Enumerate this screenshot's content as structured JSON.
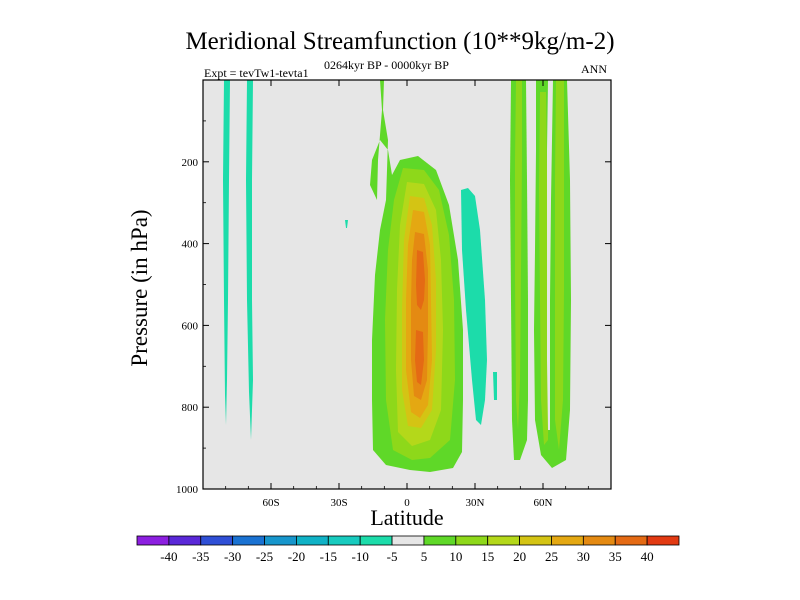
{
  "chart_data": {
    "type": "contour",
    "title": "Meridional Streamfunction (10**9kg/m-2)",
    "experiment_label": "Expt = tevTw1-tevta1",
    "period_label": "0264kyr BP - 0000kyr BP",
    "season_label": "ANN",
    "xlabel": "Latitude",
    "ylabel": "Pressure (in hPa)",
    "xlim": [
      -90,
      90
    ],
    "ylim": [
      1000,
      0
    ],
    "x_ticks": [
      {
        "value": -60,
        "label": "60S"
      },
      {
        "value": -30,
        "label": "30S"
      },
      {
        "value": 0,
        "label": "0"
      },
      {
        "value": 30,
        "label": "30N"
      },
      {
        "value": 60,
        "label": "60N"
      }
    ],
    "y_ticks": [
      {
        "value": 200,
        "label": "200"
      },
      {
        "value": 400,
        "label": "400"
      },
      {
        "value": 600,
        "label": "600"
      },
      {
        "value": 800,
        "label": "800"
      },
      {
        "value": 1000,
        "label": "1000"
      }
    ],
    "levels": [
      -40,
      -35,
      -30,
      -25,
      -20,
      -15,
      -10,
      -5,
      5,
      10,
      15,
      20,
      25,
      30,
      35,
      40
    ],
    "level_labels": [
      "-40",
      "-35",
      "-30",
      "-25",
      "-20",
      "-15",
      "-10",
      "-5",
      "5",
      "10",
      "15",
      "20",
      "25",
      "30",
      "35",
      "40"
    ],
    "colors": [
      "#8c1fe0",
      "#5a28d8",
      "#2f4fd6",
      "#1a72d2",
      "#1796cc",
      "#10b2c6",
      "#18cbbf",
      "#1cdcaa",
      "#e6e6e6",
      "#5fd828",
      "#8ed81a",
      "#b4d81a",
      "#d4c414",
      "#e4a812",
      "#e48a12",
      "#e46a14",
      "#e23a12"
    ],
    "features": [
      {
        "name": "sh-polar-cell-1",
        "sign": "negative",
        "level": -5,
        "lat_range": [
          -81,
          -79
        ],
        "p_range": [
          0,
          840
        ]
      },
      {
        "name": "sh-polar-cell-2",
        "sign": "negative",
        "level": -5,
        "lat_range": [
          -70,
          -68
        ],
        "p_range": [
          0,
          860
        ]
      },
      {
        "name": "tropical-positive-cell",
        "sign": "positive",
        "max_level": 35,
        "lat_range": [
          -18,
          22
        ],
        "p_range": [
          0,
          950
        ],
        "core_lat": 6,
        "core_p": [
          400,
          800
        ]
      },
      {
        "name": "nh-tropical-negative-cell",
        "sign": "negative",
        "level": -5,
        "lat_range": [
          22,
          35
        ],
        "p_range": [
          260,
          830
        ]
      },
      {
        "name": "nh-midlat-positive-1",
        "sign": "positive",
        "max_level": 10,
        "lat_range": [
          47,
          54
        ],
        "p_range": [
          0,
          930
        ]
      },
      {
        "name": "nh-midlat-positive-2",
        "sign": "positive",
        "max_level": 10,
        "lat_range": [
          59,
          67
        ],
        "p_range": [
          0,
          940
        ]
      }
    ]
  }
}
